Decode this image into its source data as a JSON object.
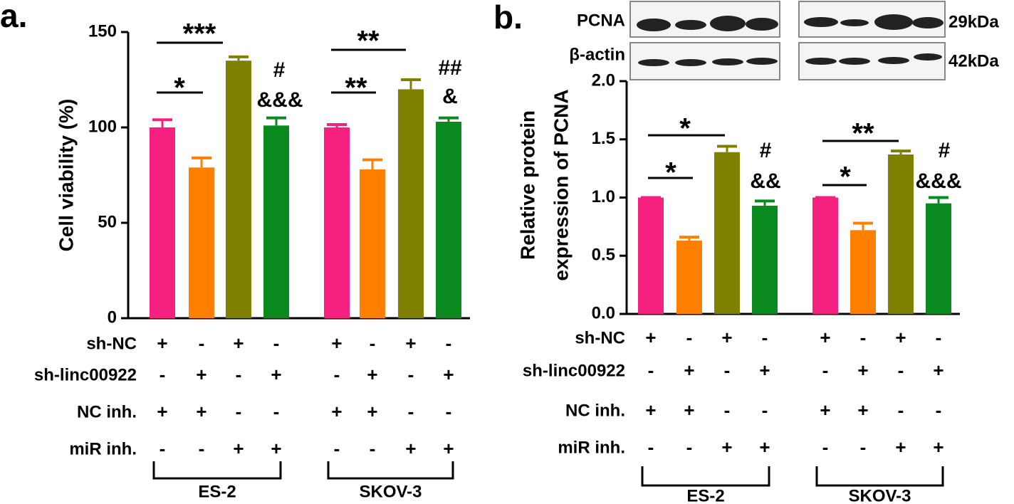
{
  "chart_data": [
    {
      "type": "bar",
      "panel_label": "a.",
      "ylabel": [
        "Cell viability (%)"
      ],
      "categories": [
        null,
        null,
        null,
        null,
        null,
        null,
        null,
        null
      ],
      "values": [
        100,
        79,
        135,
        101,
        100,
        78,
        120,
        103
      ],
      "errors": [
        4,
        5,
        2,
        4,
        1.5,
        5,
        5,
        2
      ],
      "colors": [
        "#f5207f",
        "#ff8000",
        "#808000",
        "#0a8a1e",
        "#f5207f",
        "#ff8000",
        "#808000",
        "#0a8a1e"
      ],
      "ylim": [
        0,
        150
      ],
      "yticks": [
        0,
        50,
        100,
        150
      ],
      "annotations": [
        "***",
        "*",
        "**",
        "**",
        "#",
        "&&&",
        "##",
        "&"
      ],
      "conditions": [
        {
          "name": "sh-NC",
          "marks": [
            "+",
            "-",
            "+",
            "-",
            "+",
            "-",
            "+",
            "-"
          ]
        },
        {
          "name": "sh-linc00922",
          "marks": [
            "-",
            "+",
            "-",
            "+",
            "-",
            "+",
            "-",
            "+"
          ]
        },
        {
          "name": "NC inh.",
          "marks": [
            "+",
            "+",
            "-",
            "-",
            "+",
            "+",
            "-",
            "-"
          ]
        },
        {
          "name": "miR inh.",
          "marks": [
            "-",
            "-",
            "+",
            "+",
            "-",
            "-",
            "+",
            "+"
          ]
        }
      ],
      "groups": [
        "ES-2",
        "SKOV-3"
      ]
    },
    {
      "type": "bar",
      "panel_label": "b.",
      "ylabel": [
        "Relative protein",
        "expression of PCNA"
      ],
      "categories": [
        null,
        null,
        null,
        null,
        null,
        null,
        null,
        null
      ],
      "values": [
        1.0,
        0.63,
        1.39,
        0.93,
        1.0,
        0.72,
        1.37,
        0.95
      ],
      "errors": [
        0,
        0.03,
        0.05,
        0.04,
        0,
        0.06,
        0.03,
        0.05
      ],
      "colors": [
        "#f5207f",
        "#ff8000",
        "#808000",
        "#0a8a1e",
        "#f5207f",
        "#ff8000",
        "#808000",
        "#0a8a1e"
      ],
      "ylim": [
        0,
        2
      ],
      "yticks": [
        {
          "value": 0,
          "label": "0.0"
        },
        {
          "value": 0.5,
          "label": "0.5"
        },
        {
          "value": 1,
          "label": "1.0"
        },
        {
          "value": 1.5,
          "label": "1.5"
        },
        {
          "value": 2,
          "label": "2.0"
        }
      ],
      "annotations": [
        "*",
        "*",
        "**",
        "*",
        "#",
        "&&",
        "#",
        "&&&"
      ],
      "conditions": [
        {
          "name": "sh-NC",
          "marks": [
            "+",
            "-",
            "+",
            "-",
            "+",
            "-",
            "+",
            "-"
          ]
        },
        {
          "name": "sh-linc00922",
          "marks": [
            "-",
            "+",
            "-",
            "+",
            "-",
            "+",
            "-",
            "+"
          ]
        },
        {
          "name": "NC inh.",
          "marks": [
            "+",
            "+",
            "-",
            "-",
            "+",
            "+",
            "-",
            "-"
          ]
        },
        {
          "name": "miR inh.",
          "marks": [
            "-",
            "-",
            "+",
            "+",
            "-",
            "-",
            "+",
            "+"
          ]
        }
      ],
      "groups": [
        "ES-2",
        "SKOV-3"
      ]
    }
  ],
  "blot": {
    "rows": [
      "PCNA",
      "β-actin"
    ],
    "sizes": [
      "29kDa",
      "42kDa"
    ]
  }
}
